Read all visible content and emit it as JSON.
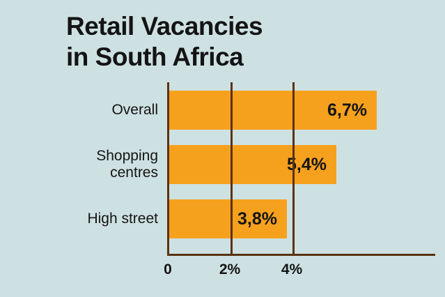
{
  "title": {
    "line1": "Retail Vacancies",
    "line2": "in South Africa"
  },
  "chart_data": {
    "type": "bar",
    "orientation": "horizontal",
    "title": "Retail Vacancies in South Africa",
    "categories": [
      "Overall",
      "Shopping centres",
      "High street"
    ],
    "values": [
      6.7,
      5.4,
      3.8
    ],
    "value_labels": [
      "6,7%",
      "5,4%",
      "3,8%"
    ],
    "xlim": [
      0,
      8.6
    ],
    "ticks": [
      {
        "value": 0,
        "label": "0"
      },
      {
        "value": 2,
        "label": "2%"
      },
      {
        "value": 4,
        "label": "4%"
      }
    ],
    "grid": "vertical gridlines at tick positions, drawn over bars",
    "legend": "none",
    "colors": {
      "background": "#CEE1E2",
      "bar": "#F6A11E",
      "axis": "#5A3212",
      "text": "#141414"
    }
  }
}
